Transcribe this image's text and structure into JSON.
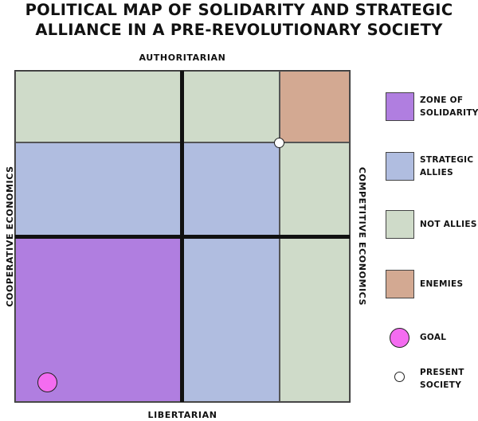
{
  "title": {
    "line1": "POLITICAL MAP OF SOLIDARITY AND STRATEGIC",
    "line2": "ALLIANCE IN A PRE-REVOLUTIONARY SOCIETY"
  },
  "axes": {
    "top": "AUTHORITARIAN",
    "bottom": "LIBERTARIAN",
    "left": "COOPERATIVE ECONOMICS",
    "right": "COMPETITIVE ECONOMICS"
  },
  "colors": {
    "solidarity": "#b07ee0",
    "allies": "#b0bde0",
    "not_allies": "#cfdbc9",
    "enemies": "#d3a992",
    "goal": "#f46cf0",
    "present": "#ffffff"
  },
  "grid": {
    "rows": 4,
    "cols": 3,
    "cells": [
      {
        "row": 0,
        "col": 0,
        "zone": "not_allies"
      },
      {
        "row": 0,
        "col": 1,
        "zone": "not_allies"
      },
      {
        "row": 0,
        "col": 2,
        "zone": "enemies"
      },
      {
        "row": 1,
        "col": 0,
        "zone": "allies"
      },
      {
        "row": 1,
        "col": 1,
        "zone": "allies"
      },
      {
        "row": 1,
        "col": 2,
        "zone": "not_allies"
      },
      {
        "row": 2,
        "col": 0,
        "zone": "solidarity"
      },
      {
        "row": 2,
        "col": 1,
        "zone": "allies"
      },
      {
        "row": 2,
        "col": 2,
        "zone": "not_allies"
      },
      {
        "row": 3,
        "col": 0,
        "zone": "solidarity"
      },
      {
        "row": 3,
        "col": 1,
        "zone": "allies"
      },
      {
        "row": 3,
        "col": 2,
        "zone": "not_allies"
      }
    ]
  },
  "legend": {
    "solidarity": {
      "lines": [
        "ZONE OF",
        "SOLIDARITY"
      ]
    },
    "allies": {
      "lines": [
        "STRATEGIC",
        "ALLIES"
      ]
    },
    "not_allies": {
      "lines": [
        "NOT ALLIES"
      ]
    },
    "enemies": {
      "lines": [
        "ENEMIES"
      ]
    },
    "goal": {
      "lines": [
        "GOAL"
      ]
    },
    "present": {
      "lines": [
        "PRESENT",
        "SOCIETY"
      ]
    }
  }
}
